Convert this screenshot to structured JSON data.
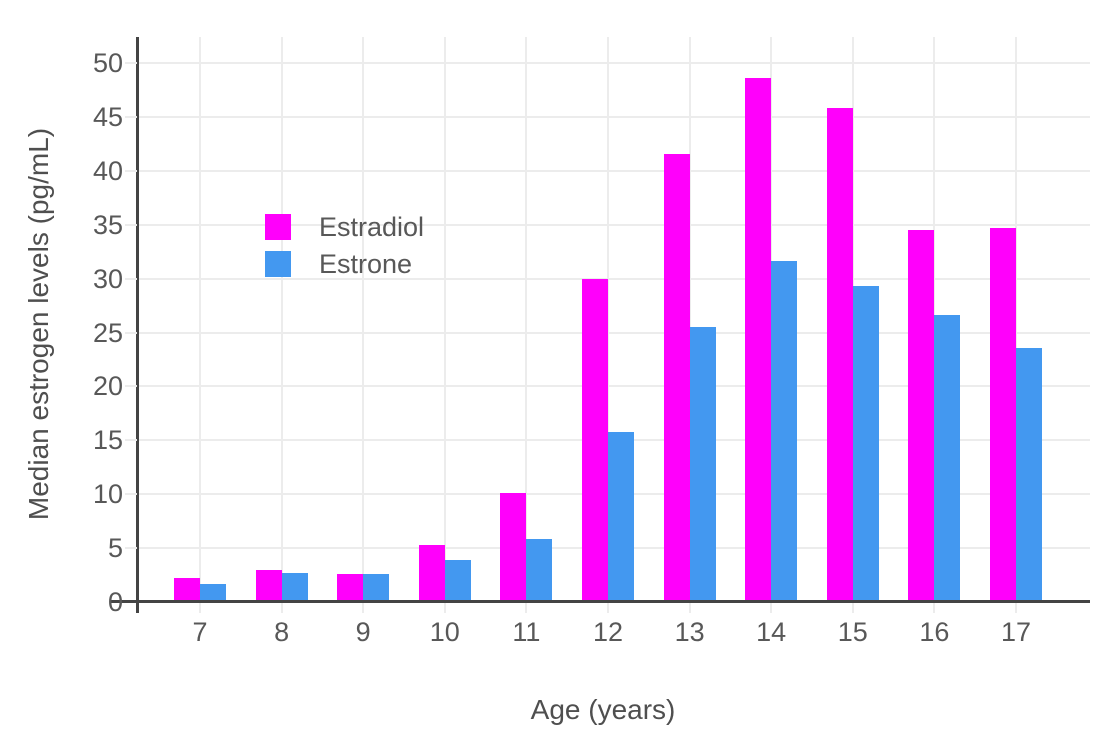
{
  "chart_data": {
    "type": "bar",
    "title": "",
    "xlabel": "Age (years)",
    "ylabel": "Median estrogen levels (pg/mL)",
    "categories": [
      "7",
      "8",
      "9",
      "10",
      "11",
      "12",
      "13",
      "14",
      "15",
      "16",
      "17"
    ],
    "series": [
      {
        "name": "Estradiol",
        "color": "#ff00fb",
        "values": [
          2.2,
          3.0,
          2.6,
          5.3,
          10.1,
          30.0,
          41.6,
          48.6,
          45.8,
          34.5,
          34.7
        ]
      },
      {
        "name": "Estrone",
        "color": "#4398f0",
        "values": [
          1.7,
          2.7,
          2.6,
          3.9,
          5.8,
          15.8,
          25.5,
          31.6,
          29.3,
          26.6,
          23.6
        ]
      }
    ],
    "ylim": [
      0,
      50
    ],
    "ytick_step": 5,
    "ytick_labels": [
      "0",
      "5",
      "10",
      "15",
      "20",
      "25",
      "30",
      "35",
      "40",
      "45",
      "50"
    ],
    "grid": true,
    "legend_position": "upper-left-inside",
    "style": {
      "grid_color": "#ececec",
      "axis_color": "#444444",
      "tick_text_color": "#585858",
      "axis_title_color": "#4f4f4f",
      "background": "#ffffff"
    }
  }
}
